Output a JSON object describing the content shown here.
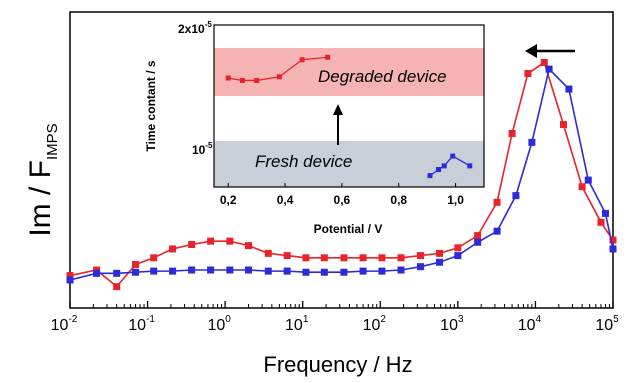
{
  "chart_data": [
    {
      "type": "line",
      "title": "",
      "xlabel": "Frequency / Hz",
      "ylabel": "Im / F",
      "ylabel_subscript": "IMPS",
      "xscale": "log",
      "xlim_exp": [
        -2,
        5
      ],
      "x_tick_exponents": [
        "-2",
        "-1",
        "0",
        "1",
        "2",
        "3",
        "4",
        "5"
      ],
      "x_tick_base": "10",
      "ylim": [
        0,
        1
      ],
      "y_ticks": false,
      "arrow_direction": "left",
      "series": [
        {
          "color": "#e8232a",
          "marker": "square",
          "points": [
            [
              0.01,
              0.02
            ],
            [
              0.022,
              0.045
            ],
            [
              0.04,
              -0.03
            ],
            [
              0.07,
              0.07
            ],
            [
              0.12,
              0.1
            ],
            [
              0.21,
              0.14
            ],
            [
              0.37,
              0.16
            ],
            [
              0.65,
              0.175
            ],
            [
              1.15,
              0.175
            ],
            [
              2.0,
              0.155
            ],
            [
              3.6,
              0.12
            ],
            [
              6.3,
              0.11
            ],
            [
              11,
              0.1
            ],
            [
              19,
              0.1
            ],
            [
              34,
              0.1
            ],
            [
              60,
              0.1
            ],
            [
              105,
              0.1
            ],
            [
              185,
              0.1
            ],
            [
              330,
              0.11
            ],
            [
              580,
              0.12
            ],
            [
              1000,
              0.145
            ],
            [
              1800,
              0.2
            ],
            [
              3200,
              0.35
            ],
            [
              5000,
              0.66
            ],
            [
              8000,
              0.93
            ],
            [
              13000,
              0.98
            ],
            [
              23000,
              0.7
            ],
            [
              40000,
              0.42
            ],
            [
              70000,
              0.26
            ],
            [
              100000,
              0.18
            ]
          ]
        },
        {
          "color": "#2b2bd9",
          "marker": "square",
          "points": [
            [
              0.01,
              0.0
            ],
            [
              0.022,
              0.03
            ],
            [
              0.04,
              0.03
            ],
            [
              0.07,
              0.035
            ],
            [
              0.12,
              0.04
            ],
            [
              0.21,
              0.04
            ],
            [
              0.37,
              0.045
            ],
            [
              0.65,
              0.045
            ],
            [
              1.15,
              0.045
            ],
            [
              2.0,
              0.045
            ],
            [
              3.6,
              0.04
            ],
            [
              6.3,
              0.04
            ],
            [
              11,
              0.035
            ],
            [
              19,
              0.035
            ],
            [
              34,
              0.035
            ],
            [
              60,
              0.04
            ],
            [
              105,
              0.04
            ],
            [
              185,
              0.045
            ],
            [
              330,
              0.06
            ],
            [
              580,
              0.08
            ],
            [
              1000,
              0.11
            ],
            [
              1800,
              0.17
            ],
            [
              3200,
              0.22
            ],
            [
              5600,
              0.38
            ],
            [
              9000,
              0.62
            ],
            [
              15000,
              0.95
            ],
            [
              27000,
              0.86
            ],
            [
              48000,
              0.45
            ],
            [
              80000,
              0.3
            ],
            [
              100000,
              0.14
            ]
          ]
        }
      ]
    },
    {
      "type": "scatter",
      "title": "",
      "xlabel": "Potential / V",
      "ylabel": "Time contant / s",
      "xlim": [
        0.15,
        1.1
      ],
      "x_ticks": [
        "0,2",
        "0,4",
        "0,6",
        "0,8",
        "1,0"
      ],
      "x_tick_values": [
        0.2,
        0.4,
        0.6,
        0.8,
        1.0
      ],
      "y_ticks": [
        {
          "label_base": "2x10",
          "label_exp": "-5",
          "value": 2.0
        },
        {
          "label_base": "10",
          "label_exp": "-5",
          "value": 1.0
        }
      ],
      "ylim": [
        0.75,
        2.0
      ],
      "band_labels": {
        "degraded": "Degraded device",
        "fresh": "Fresh device"
      },
      "band_colors": {
        "degraded": "#f6b3b3",
        "fresh": "#c9cfd8"
      },
      "series": [
        {
          "name": "",
          "color": "#e8232a",
          "marker": "square",
          "points": [
            [
              0.2,
              1.59
            ],
            [
              0.25,
              1.57
            ],
            [
              0.3,
              1.57
            ],
            [
              0.38,
              1.6
            ],
            [
              0.46,
              1.74
            ],
            [
              0.55,
              1.76
            ]
          ]
        },
        {
          "name": "",
          "color": "#2b2bd9",
          "marker": "square",
          "points": [
            [
              0.91,
              0.79
            ],
            [
              0.94,
              0.84
            ],
            [
              0.96,
              0.87
            ],
            [
              0.99,
              0.95
            ],
            [
              1.05,
              0.87
            ]
          ]
        }
      ]
    }
  ]
}
